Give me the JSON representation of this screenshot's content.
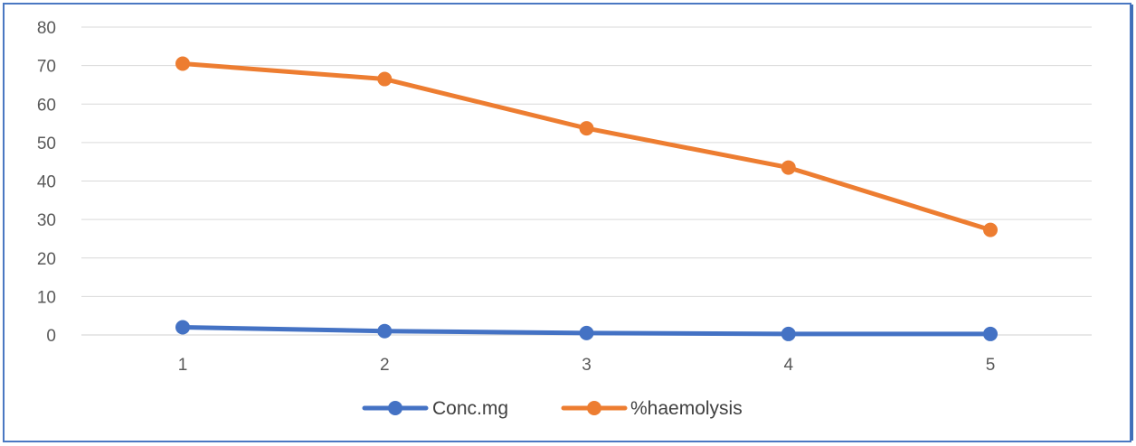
{
  "chart_data": {
    "type": "line",
    "x": [
      1,
      2,
      3,
      4,
      5
    ],
    "categories": [
      "1",
      "2",
      "3",
      "4",
      "5"
    ],
    "ylim": [
      0,
      80
    ],
    "yticks": [
      0,
      10,
      20,
      30,
      40,
      50,
      60,
      70,
      80
    ],
    "grid": true,
    "legend_position": "bottom",
    "title": "",
    "xlabel": "",
    "ylabel": "",
    "series": [
      {
        "name": "Conc.mg",
        "color": "#4472c4",
        "values": [
          2,
          1,
          0.5,
          0.25,
          0.25
        ]
      },
      {
        "name": "%haemolysis",
        "color": "#ed7d31",
        "values": [
          70.5,
          66.5,
          53.7,
          43.5,
          27.3
        ]
      }
    ]
  }
}
